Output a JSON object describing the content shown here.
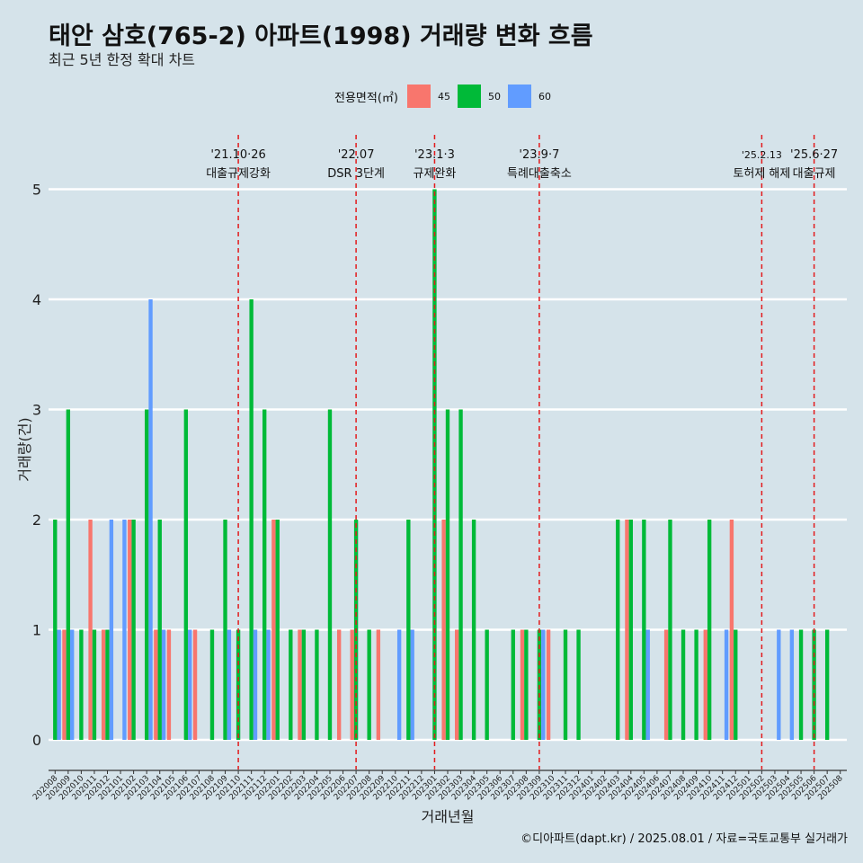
{
  "title": "태안 삼호(765-2) 아파트(1998) 거래량 변화 흐름",
  "subtitle": "최근 5년 한정 확대 차트",
  "caption": "©디아파트(dapt.kr) / 2025.08.01 / 자료=국토교통부 실거래가",
  "legend": {
    "title": "전용면적(㎡)",
    "items": [
      {
        "label": "45",
        "color": "#f8766d"
      },
      {
        "label": "50",
        "color": "#00ba38"
      },
      {
        "label": "60",
        "color": "#619cff"
      }
    ]
  },
  "chart_data": {
    "type": "bar",
    "title": "태안 삼호(765-2) 아파트(1998) 거래량 변화 흐름",
    "subtitle": "최근 5년 한정 확대 차트",
    "xlabel": "거래년월",
    "ylabel": "거래량(건)",
    "ylim": [
      0,
      5
    ],
    "yticks": [
      0,
      1,
      2,
      3,
      4,
      5
    ],
    "grid": true,
    "legend_position": "top",
    "categories": [
      "202008",
      "202009",
      "202010",
      "202011",
      "202012",
      "202101",
      "202102",
      "202103",
      "202104",
      "202105",
      "202106",
      "202107",
      "202108",
      "202109",
      "202110",
      "202111",
      "202112",
      "202201",
      "202202",
      "202203",
      "202204",
      "202205",
      "202206",
      "202207",
      "202208",
      "202209",
      "202210",
      "202211",
      "202212",
      "202301",
      "202302",
      "202303",
      "202304",
      "202305",
      "202306",
      "202307",
      "202308",
      "202309",
      "202310",
      "202311",
      "202312",
      "202401",
      "202402",
      "202403",
      "202404",
      "202405",
      "202406",
      "202407",
      "202408",
      "202409",
      "202410",
      "202411",
      "202412",
      "202501",
      "202502",
      "202503",
      "202504",
      "202505",
      "202506",
      "202507",
      "202508"
    ],
    "series": [
      {
        "name": "45",
        "color": "#f8766d",
        "values": [
          0,
          1,
          0,
          2,
          1,
          0,
          2,
          0,
          1,
          1,
          0,
          1,
          0,
          0,
          0,
          0,
          0,
          2,
          0,
          1,
          0,
          0,
          1,
          1,
          0,
          1,
          0,
          0,
          0,
          0,
          2,
          1,
          0,
          0,
          0,
          0,
          1,
          0,
          1,
          0,
          0,
          0,
          0,
          0,
          2,
          0,
          0,
          1,
          0,
          0,
          1,
          0,
          2,
          0,
          0,
          0,
          0,
          0,
          0,
          0,
          0
        ]
      },
      {
        "name": "50",
        "color": "#00ba38",
        "values": [
          2,
          3,
          1,
          1,
          1,
          0,
          2,
          3,
          2,
          0,
          3,
          0,
          1,
          2,
          1,
          4,
          3,
          2,
          1,
          1,
          1,
          3,
          0,
          2,
          1,
          0,
          0,
          2,
          0,
          5,
          3,
          3,
          2,
          1,
          0,
          1,
          1,
          1,
          0,
          1,
          1,
          0,
          0,
          2,
          2,
          2,
          0,
          2,
          1,
          1,
          2,
          0,
          1,
          0,
          0,
          0,
          0,
          1,
          1,
          1,
          0
        ]
      },
      {
        "name": "60",
        "color": "#619cff",
        "values": [
          1,
          1,
          0,
          0,
          2,
          2,
          0,
          4,
          1,
          0,
          1,
          0,
          0,
          1,
          0,
          1,
          1,
          0,
          0,
          0,
          0,
          0,
          0,
          0,
          0,
          0,
          1,
          1,
          0,
          0,
          0,
          0,
          0,
          0,
          0,
          0,
          0,
          1,
          0,
          0,
          0,
          0,
          0,
          0,
          0,
          1,
          0,
          0,
          0,
          0,
          0,
          1,
          0,
          0,
          0,
          1,
          1,
          0,
          0,
          0,
          0
        ]
      }
    ],
    "annotations": [
      {
        "x": "202110",
        "date": "'21.10·26",
        "label": "대출규제강화"
      },
      {
        "x": "202207",
        "date": "'22.07",
        "label": "DSR 3단계"
      },
      {
        "x": "202301",
        "date": "'23.1·3",
        "label": "규제완화"
      },
      {
        "x": "202309",
        "date": "'23.9·7",
        "label": "특례대출축소"
      },
      {
        "x": "202502",
        "date": "'25.2.13",
        "label": "토허제 해제"
      },
      {
        "x": "202506",
        "date": "'25.6·27",
        "label": "대출규제"
      }
    ]
  }
}
